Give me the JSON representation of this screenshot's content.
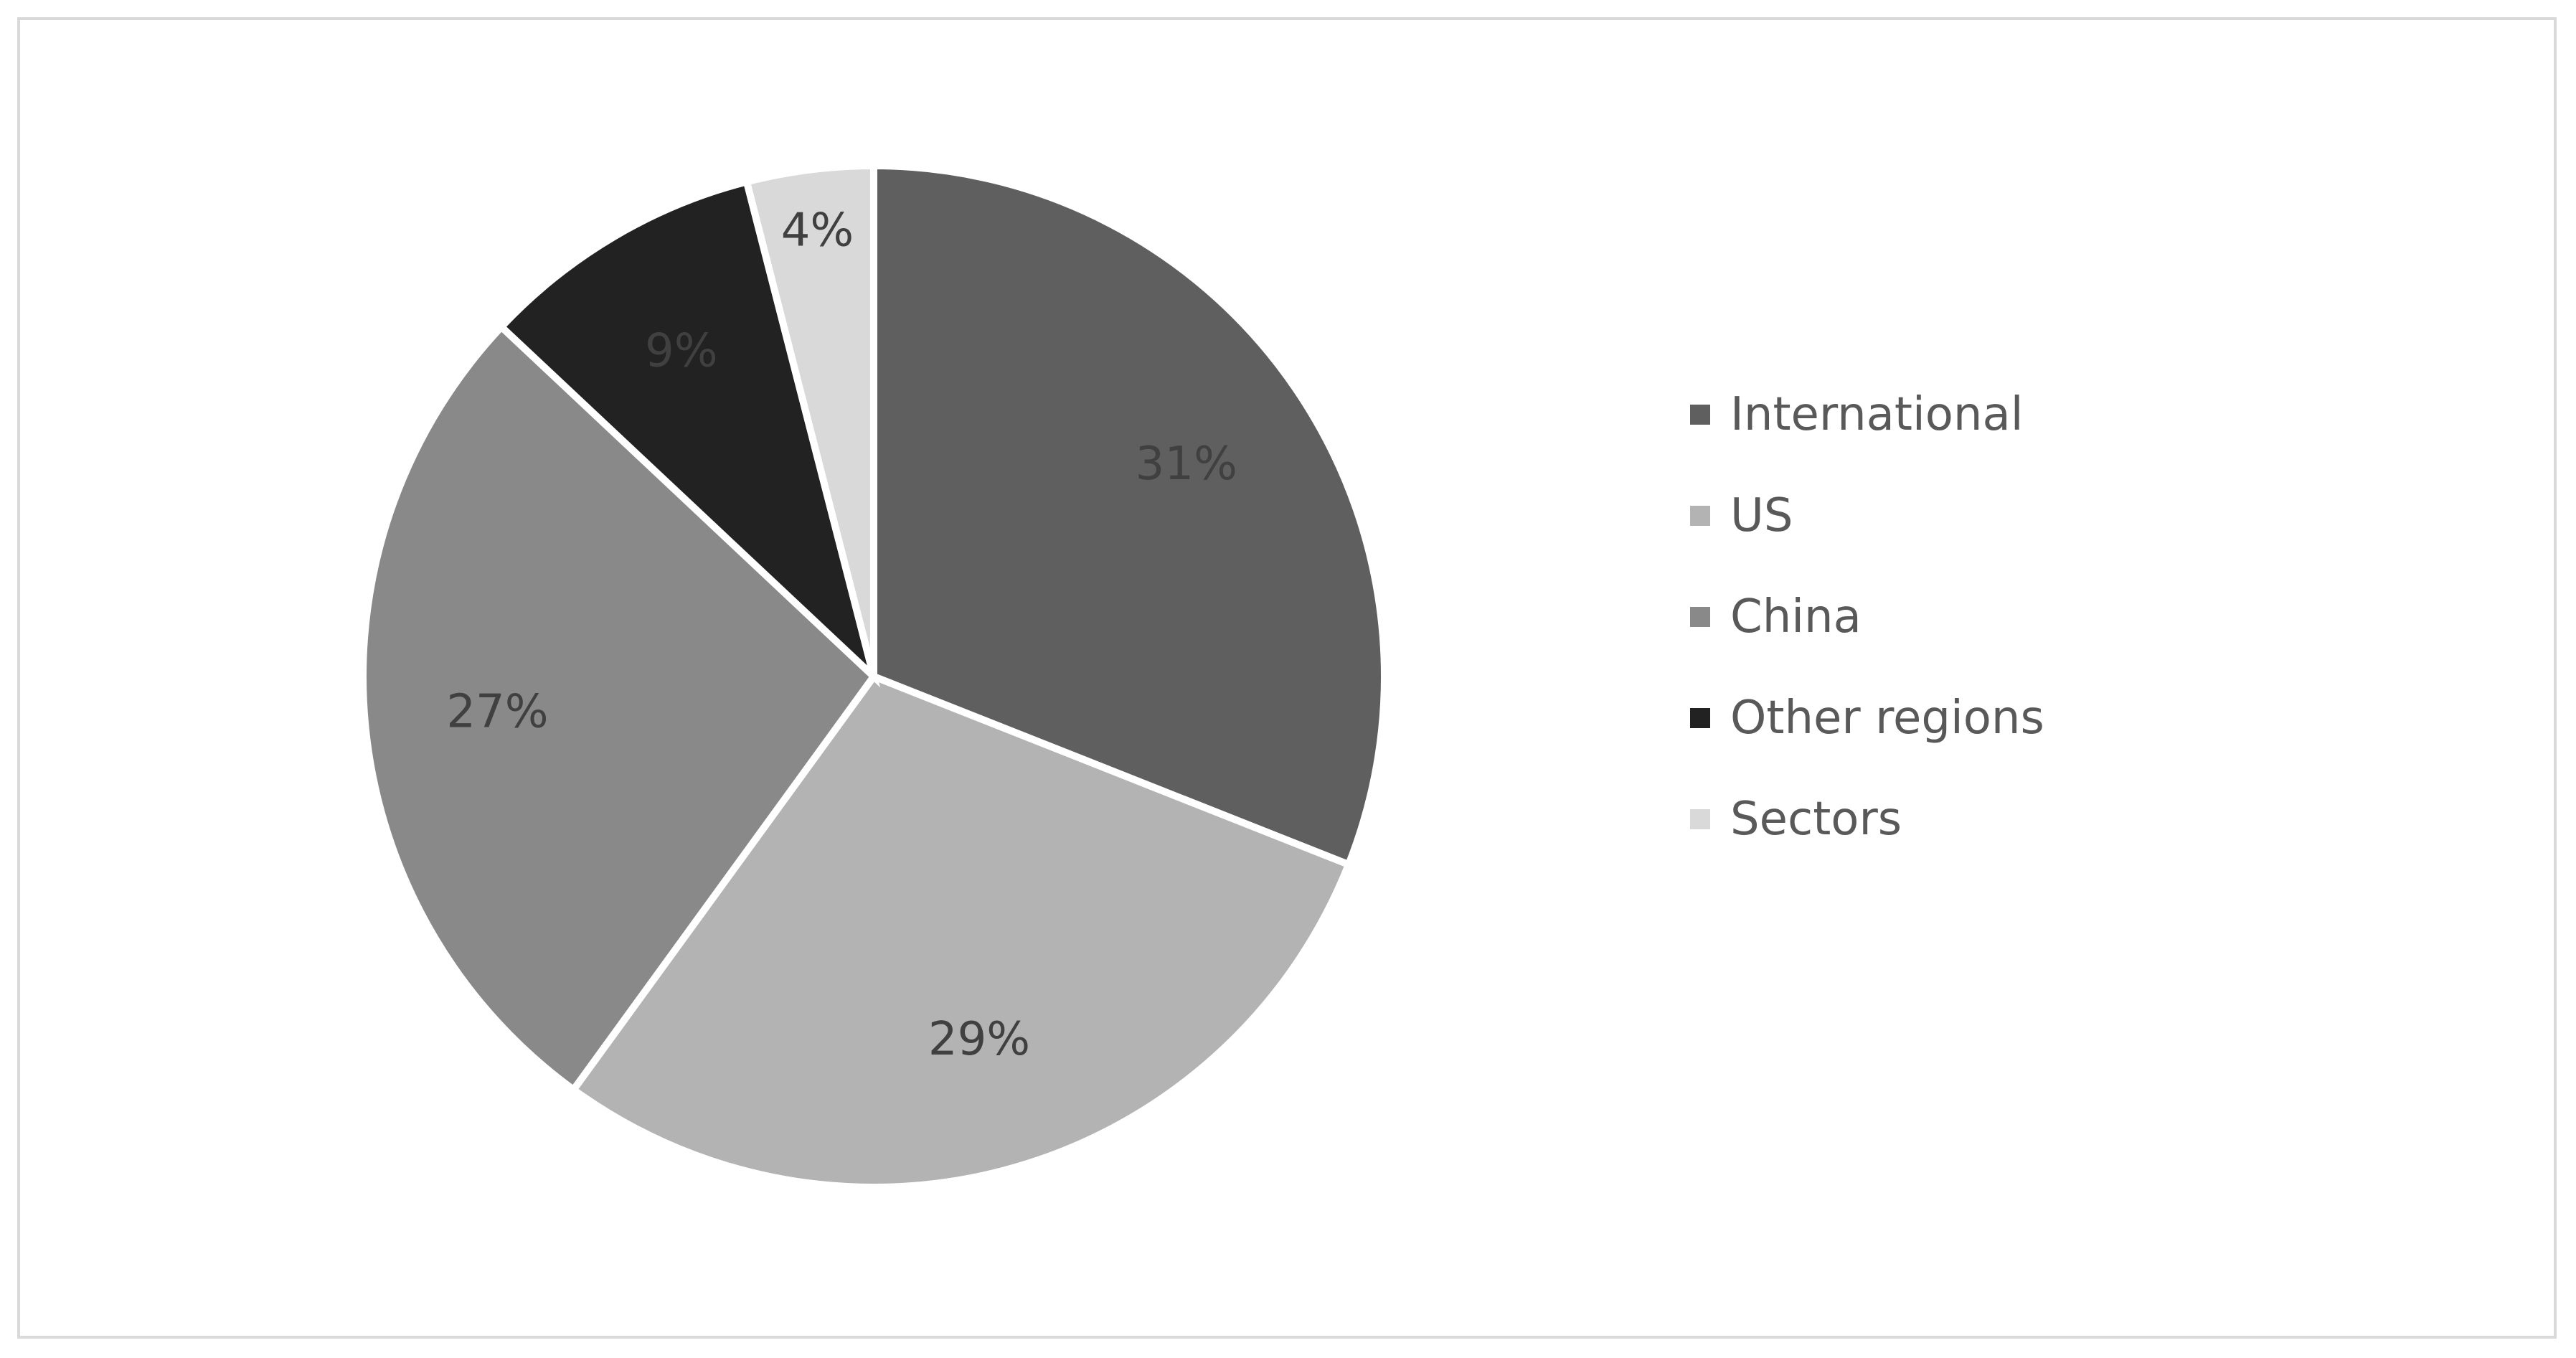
{
  "chart_data": {
    "type": "pie",
    "title": "",
    "legend_position": "right",
    "start_angle_deg": 0,
    "direction": "clockwise",
    "slices": [
      {
        "label": "International",
        "value": 31,
        "display": "31%",
        "color": "#5f5f5f"
      },
      {
        "label": "US",
        "value": 29,
        "display": "29%",
        "color": "#b3b3b3"
      },
      {
        "label": "China",
        "value": 27,
        "display": "27%",
        "color": "#898989"
      },
      {
        "label": "Other regions",
        "value": 9,
        "display": "9%",
        "color": "#222222"
      },
      {
        "label": "Sectors",
        "value": 4,
        "display": "4%",
        "color": "#d9d9d9"
      }
    ]
  }
}
